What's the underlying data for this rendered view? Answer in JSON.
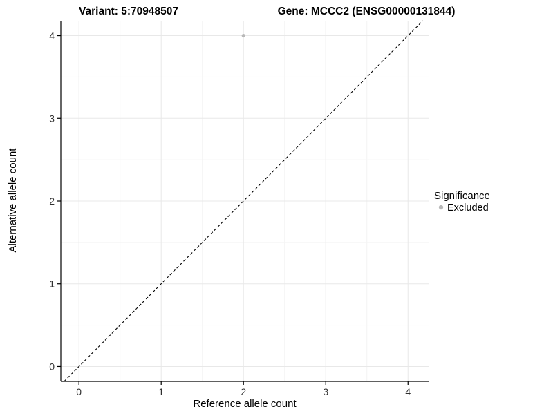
{
  "chart_data": {
    "type": "scatter",
    "title_left": "Variant: 5:70948507",
    "title_right": "Gene: MCCC2 (ENSG00000131844)",
    "xlabel": "Reference allele count",
    "ylabel": "Alternative allele count",
    "xlim": [
      -0.22,
      4.25
    ],
    "ylim": [
      -0.18,
      4.18
    ],
    "xticks": [
      0,
      1,
      2,
      3,
      4
    ],
    "yticks": [
      0,
      1,
      2,
      3,
      4
    ],
    "grid": true,
    "colors": {
      "major_grid": "#e8e8e8",
      "minor_grid": "#f4f4f4",
      "axis_line": "#000000",
      "tick_label": "#303030"
    },
    "reference_line": {
      "kind": "identity",
      "style": "dashed",
      "color": "#000000"
    },
    "series": [
      {
        "name": "Excluded",
        "color": "#b8b8b8",
        "points": [
          {
            "x": 2,
            "y": 4
          }
        ]
      }
    ],
    "legend": {
      "title": "Significance",
      "position": "right",
      "entries": [
        {
          "label": "Excluded",
          "color": "#b8b8b8"
        }
      ]
    }
  }
}
